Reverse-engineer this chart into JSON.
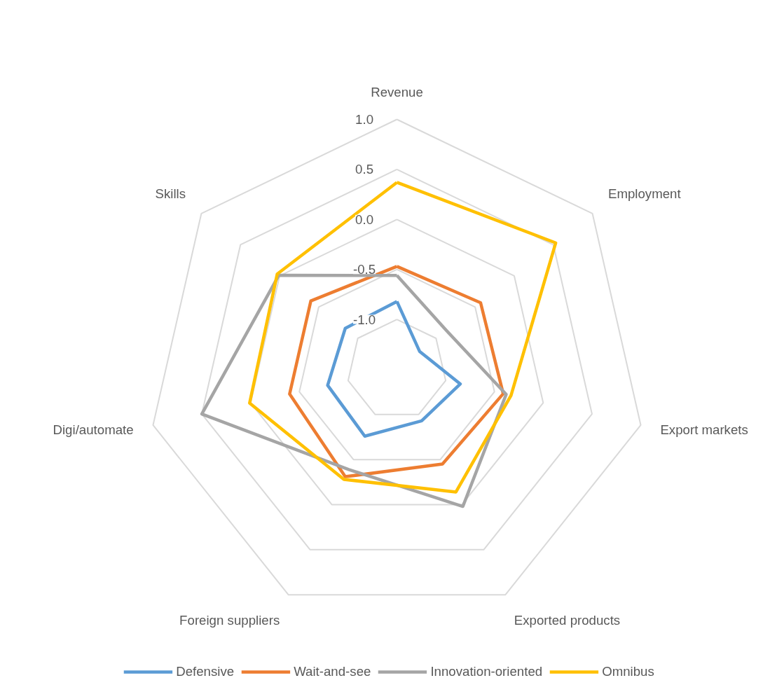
{
  "chart_data": {
    "type": "radar",
    "categories": [
      "Revenue",
      "Employment",
      "Export markets",
      "Exported products",
      "Foreign suppliers",
      "Digi/automate",
      "Skills"
    ],
    "ylim": [
      -1.5,
      1.0
    ],
    "yticks": [
      {
        "value": -1.0,
        "label": "-1.0"
      },
      {
        "value": -0.5,
        "label": "-0.5"
      },
      {
        "value": 0.0,
        "label": "0.0"
      },
      {
        "value": 0.5,
        "label": "0.5"
      },
      {
        "value": 1.0,
        "label": "1.0"
      }
    ],
    "grid": true,
    "legend": "bottom",
    "series": [
      {
        "name": "Defensive",
        "color": "#5b9bd5",
        "values": [
          -0.82,
          -1.21,
          -0.85,
          -0.93,
          -0.76,
          -0.79,
          -0.84
        ]
      },
      {
        "name": "Wait-and-see",
        "color": "#ed7d31",
        "values": [
          -0.47,
          -0.43,
          -0.41,
          -0.45,
          -0.31,
          -0.4,
          -0.4
        ]
      },
      {
        "name": "Innovation-oriented",
        "color": "#a5a5a5",
        "values": [
          -0.56,
          -0.87,
          -0.38,
          0.02,
          -0.39,
          0.5,
          0.01
        ]
      },
      {
        "name": "Omnibus",
        "color": "#ffc000",
        "values": [
          0.37,
          0.53,
          -0.33,
          -0.14,
          -0.28,
          0.01,
          0.03
        ]
      }
    ]
  }
}
